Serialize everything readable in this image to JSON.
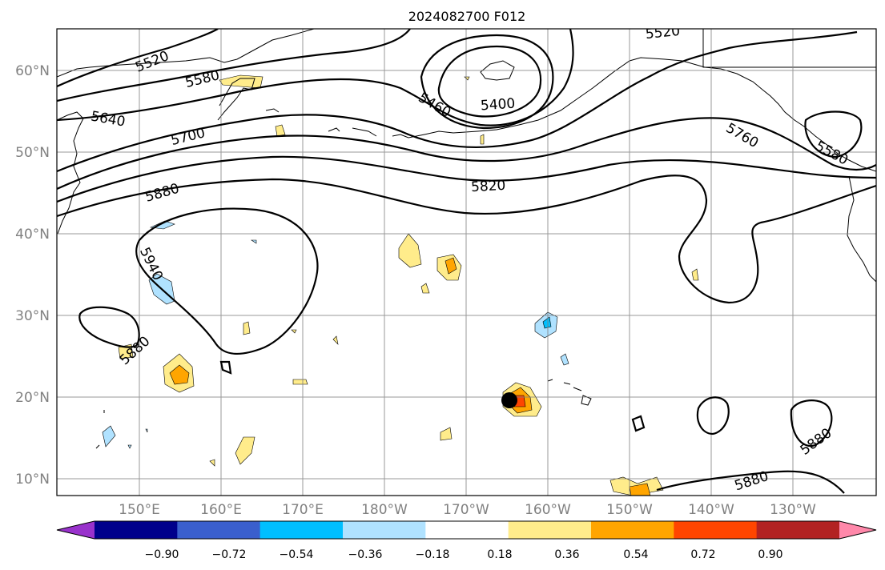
{
  "title": "2024082700 F012",
  "lat_ticks": [
    "60°N",
    "50°N",
    "40°N",
    "30°N",
    "20°N",
    "10°N"
  ],
  "lon_ticks": [
    "150°E",
    "160°E",
    "170°E",
    "180°W",
    "170°W",
    "160°W",
    "150°W",
    "140°W",
    "130°W"
  ],
  "contour_labels": [
    "5520",
    "5580",
    "5640",
    "5700",
    "5880",
    "5940",
    "5880",
    "5460",
    "5400",
    "5520",
    "5820",
    "5760",
    "5580",
    "5880",
    "5880"
  ],
  "colorbar": {
    "ticks": [
      "−0.90",
      "−0.72",
      "−0.54",
      "−0.36",
      "−0.18",
      "0.18",
      "0.36",
      "0.54",
      "0.72",
      "0.90"
    ],
    "colors": [
      "#9932cc",
      "#00008b",
      "#3a5fcd",
      "#00bfff",
      "#b0e2ff",
      "#ffffff",
      "#ffec8b",
      "#ffa500",
      "#ff4500",
      "#b22222",
      "#ff88aa"
    ]
  },
  "colors": {
    "frame": "#000000",
    "grid": "#808080",
    "marker": "#000000"
  }
}
